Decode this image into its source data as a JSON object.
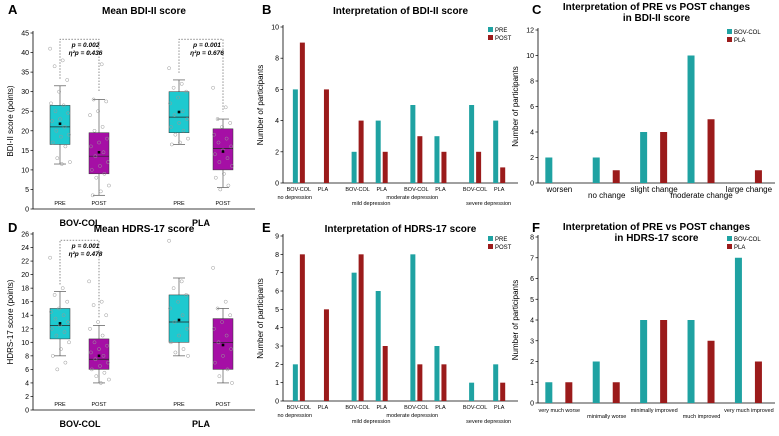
{
  "colors": {
    "pre": "#1fa2a2",
    "post": "#9b1b1b",
    "box_pre": "#1ec9cf",
    "box_post": "#a50fa5",
    "bovcol": "#1fa2a2",
    "pla": "#9b1b1b"
  },
  "chart_data": [
    {
      "id": "A",
      "type": "box",
      "letter": "A",
      "title": "Mean BDI-II score",
      "ylabel": "BDI-II score (points)",
      "ylim": [
        0,
        45
      ],
      "yticks": [
        "0",
        "5",
        "10",
        "15",
        "20",
        "25",
        "30",
        "35",
        "40",
        "45"
      ],
      "groups": [
        {
          "label": "BOV-COL",
          "boxes": [
            {
              "label": "PRE",
              "min": 11.5,
              "q1": 16.5,
              "median": 21,
              "q3": 26.5,
              "max": 31.5,
              "mean": 21.8,
              "points": [
                41,
                38,
                36.5,
                33,
                30,
                27,
                26.5,
                25,
                24.5,
                23,
                22.5,
                21,
                20,
                19,
                18.5,
                17,
                16,
                13,
                12,
                11.5
              ]
            },
            {
              "label": "POST",
              "min": 3.5,
              "q1": 9,
              "median": 13.5,
              "q3": 19.5,
              "max": 28,
              "mean": 14.5,
              "points": [
                40,
                37,
                28,
                27.5,
                25,
                24,
                21,
                20,
                18,
                17,
                16,
                14.5,
                13.5,
                12,
                11,
                10,
                9,
                8,
                6,
                4.5,
                3.5
              ]
            }
          ],
          "stat_lines": [
            "p = 0.002",
            "η²p = 0.436"
          ]
        },
        {
          "label": "PLA",
          "boxes": [
            {
              "label": "PRE",
              "min": 16.5,
              "q1": 19.5,
              "median": 23.5,
              "q3": 30,
              "max": 33,
              "mean": 24.8,
              "points": [
                36,
                32,
                31,
                30,
                28.5,
                27,
                25,
                24,
                23,
                22,
                21,
                20,
                19,
                18,
                17,
                16.5
              ]
            },
            {
              "label": "POST",
              "min": 5.5,
              "q1": 10,
              "median": 15.5,
              "q3": 20.5,
              "max": 23,
              "mean": 14.7,
              "points": [
                31,
                26,
                23,
                22,
                21,
                19,
                18,
                17,
                16,
                15,
                14,
                13,
                12,
                11,
                9,
                8,
                6,
                5
              ]
            }
          ],
          "stat_lines": [
            "p = 0.001",
            "η²p = 0.676"
          ]
        }
      ]
    },
    {
      "id": "B",
      "type": "bar",
      "letter": "B",
      "title": "Interpretation of BDI-II score",
      "ylabel": "Number of participants",
      "ylim": [
        0,
        10
      ],
      "yticks": [
        "0",
        "2",
        "4",
        "6",
        "8",
        "10"
      ],
      "legend": [
        "PRE",
        "POST"
      ],
      "categories": [
        "no depression",
        "mild depression",
        "moderate depression",
        "severe depression"
      ],
      "sub_labels": [
        "BOV-COL",
        "PLA"
      ],
      "pre": [
        6,
        0,
        2,
        4,
        5,
        3,
        5,
        4
      ],
      "post": [
        9,
        6,
        4,
        2,
        3,
        2,
        2,
        1
      ]
    },
    {
      "id": "C",
      "type": "bar",
      "letter": "C",
      "title": "Interpretation of PRE vs POST changes",
      "title2": "in BDI-II score",
      "ylabel": "Number of participants",
      "ylim": [
        0,
        12
      ],
      "yticks": [
        "0",
        "2",
        "4",
        "6",
        "8",
        "10",
        "12"
      ],
      "legend": [
        "BOV-COL",
        "PLA"
      ],
      "categories": [
        "worsen",
        "no change",
        "slight change",
        "moderate change",
        "large change"
      ],
      "series": [
        {
          "name": "BOV-COL",
          "values": [
            2,
            2,
            4,
            10,
            0
          ]
        },
        {
          "name": "PLA",
          "values": [
            0,
            1,
            4,
            5,
            1
          ]
        }
      ]
    },
    {
      "id": "D",
      "type": "box",
      "letter": "D",
      "title": "Mean HDRS-17 score",
      "ylabel": "HDRS-17 score (points)",
      "ylim": [
        0,
        26
      ],
      "yticks": [
        "0",
        "2",
        "4",
        "6",
        "8",
        "10",
        "12",
        "14",
        "16",
        "18",
        "20",
        "22",
        "24",
        "26"
      ],
      "groups": [
        {
          "label": "BOV-COL",
          "boxes": [
            {
              "label": "PRE",
              "min": 8,
              "q1": 10.5,
              "median": 12.5,
              "q3": 15,
              "max": 17.5,
              "mean": 12.8,
              "points": [
                22.5,
                18,
                17,
                16,
                15,
                14.5,
                14,
                13.5,
                13,
                12.5,
                12,
                11.5,
                11,
                10,
                9,
                8,
                7,
                6
              ]
            },
            {
              "label": "POST",
              "min": 4,
              "q1": 6,
              "median": 7.5,
              "q3": 10.5,
              "max": 12.5,
              "mean": 8,
              "points": [
                19,
                16,
                15.5,
                14,
                13,
                12,
                11,
                10,
                9.5,
                9,
                8.5,
                8,
                7.5,
                7,
                6.5,
                6,
                5.5,
                5,
                4.5,
                4
              ]
            }
          ],
          "stat_lines": [
            "p = 0.001",
            "η²p = 0.478"
          ]
        },
        {
          "label": "PLA",
          "boxes": [
            {
              "label": "PRE",
              "min": 8,
              "q1": 10,
              "median": 13,
              "q3": 17,
              "max": 19.5,
              "mean": 13.3,
              "points": [
                25,
                19,
                18,
                17,
                16,
                15,
                14,
                13,
                12,
                11,
                10,
                9,
                8.5,
                8
              ]
            },
            {
              "label": "POST",
              "min": 4,
              "q1": 6,
              "median": 10,
              "q3": 13.5,
              "max": 15,
              "mean": 9.6,
              "points": [
                21,
                16,
                15,
                14,
                13,
                12,
                11,
                10,
                9,
                8,
                7,
                6,
                5,
                4
              ]
            }
          ],
          "stat_lines": []
        }
      ]
    },
    {
      "id": "E",
      "type": "bar",
      "letter": "E",
      "title": "Interpretation of HDRS-17 score",
      "ylabel": "Number of participants",
      "ylim": [
        0,
        9
      ],
      "yticks": [
        "0",
        "1",
        "2",
        "3",
        "4",
        "5",
        "6",
        "7",
        "8",
        "9"
      ],
      "legend": [
        "PRE",
        "POST"
      ],
      "categories": [
        "no depression",
        "mild depression",
        "moderate depression",
        "severe depression"
      ],
      "sub_labels": [
        "BOV-COL",
        "PLA"
      ],
      "pre": [
        2,
        0,
        7,
        6,
        8,
        3,
        1,
        2
      ],
      "post": [
        8,
        5,
        8,
        3,
        2,
        2,
        0,
        1
      ]
    },
    {
      "id": "F",
      "type": "bar",
      "letter": "F",
      "title": "Interpretation of PRE vs POST changes",
      "title2": "in HDRS-17 score",
      "ylabel": "Number of participants",
      "ylim": [
        0,
        8
      ],
      "yticks": [
        "0",
        "1",
        "2",
        "3",
        "4",
        "5",
        "6",
        "7",
        "8"
      ],
      "legend": [
        "BOV-COL",
        "PLA"
      ],
      "categories": [
        "very much worse",
        "minimally worse",
        "minimally improved",
        "much improved",
        "very much improved"
      ],
      "series": [
        {
          "name": "BOV-COL",
          "values": [
            1,
            2,
            4,
            4,
            7
          ]
        },
        {
          "name": "PLA",
          "values": [
            1,
            1,
            4,
            3,
            2
          ]
        }
      ]
    }
  ]
}
